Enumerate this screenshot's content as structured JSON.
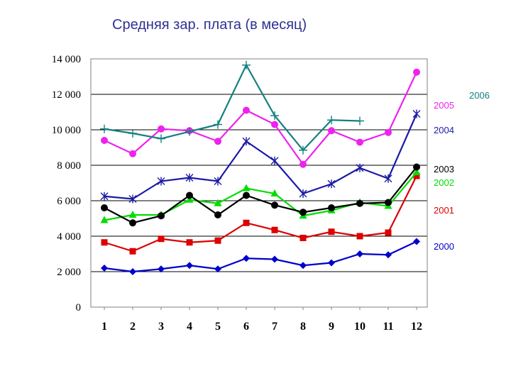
{
  "title": "Средняя зар. плата (в месяц)",
  "chart_data": {
    "type": "line",
    "title": "Средняя зар. плата (в месяц)",
    "xlabel": "",
    "ylabel": "",
    "x": [
      "1",
      "2",
      "3",
      "4",
      "5",
      "6",
      "7",
      "8",
      "9",
      "10",
      "11",
      "12"
    ],
    "ylim": [
      0,
      14000
    ],
    "yticks": [
      "0",
      "2 000",
      "4 000",
      "6 000",
      "8 000",
      "10 000",
      "12 000",
      "14 000"
    ],
    "grid": true,
    "legend_placement": "right",
    "series": [
      {
        "name": "2000",
        "color": "#0000cc",
        "marker": "diamond",
        "values": [
          2200,
          2000,
          2150,
          2350,
          2150,
          2750,
          2700,
          2350,
          2500,
          3000,
          2950,
          3700
        ]
      },
      {
        "name": "2001",
        "color": "#dd0000",
        "marker": "square",
        "values": [
          3650,
          3150,
          3850,
          3650,
          3750,
          4750,
          4350,
          3900,
          4250,
          4000,
          4200,
          7400
        ]
      },
      {
        "name": "2002",
        "color": "#00dd00",
        "marker": "triangle",
        "values": [
          4900,
          5200,
          5200,
          6050,
          5850,
          6700,
          6400,
          5150,
          5450,
          5900,
          5700,
          7600
        ]
      },
      {
        "name": "2003",
        "color": "#000000",
        "marker": "circle",
        "values": [
          5600,
          4750,
          5150,
          6300,
          5200,
          6300,
          5750,
          5350,
          5600,
          5850,
          5900,
          7900
        ]
      },
      {
        "name": "2004",
        "color": "#1a1aa6",
        "marker": "star",
        "values": [
          6250,
          6100,
          7100,
          7300,
          7100,
          9350,
          8250,
          6400,
          6950,
          7850,
          7250,
          10900
        ]
      },
      {
        "name": "2005",
        "color": "#ee22ee",
        "marker": "circle",
        "values": [
          9400,
          8650,
          10050,
          9950,
          9350,
          11100,
          10300,
          8050,
          9950,
          9300,
          9850,
          13250
        ]
      },
      {
        "name": "2006",
        "color": "#158080",
        "marker": "plus",
        "values": [
          10050,
          9800,
          9500,
          9900,
          10300,
          13650,
          10800,
          8850,
          10550,
          10500,
          null,
          null
        ]
      }
    ]
  }
}
